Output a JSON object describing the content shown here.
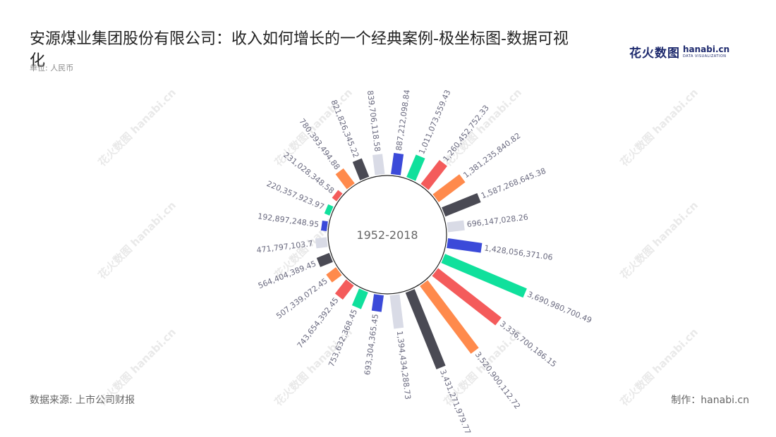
{
  "title": "安源煤业集团股份有限公司：收入如何增长的一个经典案例-极坐标图-数据可视化",
  "unit": "单位: 人民币",
  "logo": {
    "cn": "花火数图",
    "en": "hanabi.cn",
    "sub": "DATA VISUALIZATION"
  },
  "watermark": "花火数图 hanabi.cn",
  "footer": {
    "source": "数据来源: 上市公司财报",
    "maker": "制作：hanabi.cn"
  },
  "colors": [
    "#3b4ad9",
    "#10e09c",
    "#f45b5b",
    "#ff8a4c",
    "#4a4a54",
    "#d9dbe6"
  ],
  "chart_data": {
    "type": "bar",
    "polar": true,
    "center_label": "1952-2018",
    "values": [
      887212098.84,
      1011073559.43,
      1260452752.33,
      1381235840.82,
      1587268645.38,
      696147028.26,
      1428056371.06,
      3690980700.49,
      3336700186.15,
      3520900112.72,
      3431271979.77,
      1394434288.73,
      693304365.45,
      753632368.45,
      743654392.45,
      507339072.45,
      564404389.45,
      471797103.7,
      192897248.95,
      220357923.97,
      231028348.58,
      780393494.88,
      821826345.22,
      839706118.58
    ],
    "labels": [
      "887,212,098.84",
      "1,011,073,559.43",
      "1,260,452,752.33",
      "1,381,235,840.82",
      "1,587,268,645.38",
      "696,147,028.26",
      "1,428,056,371.06",
      "3,690,980,700.49",
      "3,336,700,186.15",
      "3,520,900,112.72",
      "3,431,271,979.77",
      "1,394,434,288.73",
      "693,304,365.45",
      "753,632,368.45",
      "743,654,392.45",
      "507,339,072.45",
      "564,404,389.45",
      "471,797,103.7",
      "192,897,248.95",
      "220,357,923.97",
      "231,028,348.58",
      "780,393,494.88",
      "821,826,345.22",
      "839,706,118.58"
    ]
  }
}
